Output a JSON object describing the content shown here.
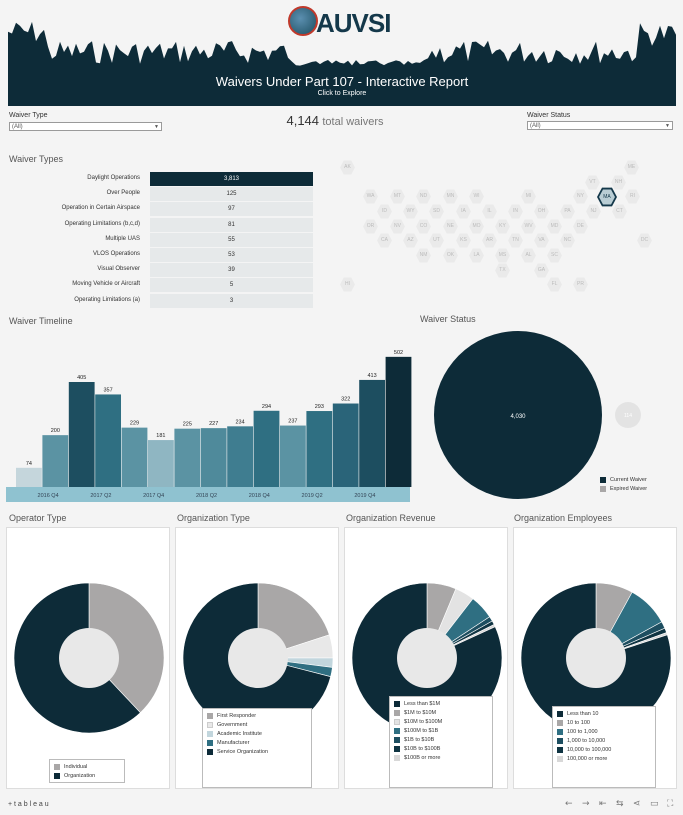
{
  "header": {
    "logo_text": "AUVSI",
    "title": "Waivers Under Part 107 - Interactive Report",
    "subtitle": "Click to Explore"
  },
  "filters": {
    "waiver_type_label": "Waiver Type",
    "waiver_type_value": "(All)",
    "waiver_status_label": "Waiver Status",
    "waiver_status_value": "(All)"
  },
  "total": {
    "number": "4,144",
    "suffix": "total waivers"
  },
  "sections": {
    "waiver_types": "Waiver Types",
    "waiver_timeline": "Waiver Timeline",
    "waiver_status": "Waiver Status",
    "operator_type": "Operator Type",
    "organization_type": "Organization Type",
    "organization_revenue": "Organization Revenue",
    "organization_employees": "Organization Employees"
  },
  "waiver_types": [
    {
      "label": "Daylight Operations",
      "value": "3,813",
      "highlight": true
    },
    {
      "label": "Over People",
      "value": "125"
    },
    {
      "label": "Operation in Certain Airspace",
      "value": "97"
    },
    {
      "label": "Operating Limitations (b,c,d)",
      "value": "81"
    },
    {
      "label": "Multiple UAS",
      "value": "55"
    },
    {
      "label": "VLOS Operations",
      "value": "53"
    },
    {
      "label": "Visual Observer",
      "value": "39"
    },
    {
      "label": "Moving Vehicle or Aircraft",
      "value": "5"
    },
    {
      "label": "Operating Limitations (a)",
      "value": "3"
    }
  ],
  "map_states": [
    "AK",
    "ME",
    "VT",
    "NH",
    "WA",
    "MT",
    "ND",
    "MN",
    "WI",
    "MI",
    "NY",
    "MA",
    "RI",
    "ID",
    "WY",
    "SD",
    "IA",
    "IL",
    "IN",
    "OH",
    "PA",
    "NJ",
    "CT",
    "OR",
    "NV",
    "CO",
    "NE",
    "MO",
    "KY",
    "WV",
    "MD",
    "DE",
    "CA",
    "AZ",
    "UT",
    "KS",
    "AR",
    "TN",
    "VA",
    "NC",
    "DC",
    "NM",
    "OK",
    "LA",
    "MS",
    "AL",
    "SC",
    "TX",
    "GA",
    "HI",
    "FL",
    "PR"
  ],
  "colors": {
    "navy": "#0d2b38",
    "teal_dark": "#1d4e60",
    "teal_mid": "#2f6f82",
    "teal_light": "#5b93a3",
    "teal_pale": "#8fb6c2",
    "axis_band": "#8fc2d0",
    "gray": "#a9a7a7",
    "light_gray": "#d8d8d8"
  },
  "chart_data": [
    {
      "type": "bar",
      "id": "timeline",
      "values": [
        74,
        200,
        405,
        357,
        229,
        181,
        225,
        227,
        234,
        294,
        237,
        293,
        322,
        413,
        502
      ],
      "labels": [
        "74",
        "200",
        "405",
        "357",
        "229",
        "181",
        "225",
        "227",
        "234",
        "294",
        "237",
        "293",
        "322",
        "413",
        "502"
      ],
      "x_ticks": [
        "2016 Q4",
        "2017 Q2",
        "2017 Q4",
        "2018 Q2",
        "2018 Q4",
        "2019 Q2",
        "2019 Q4"
      ]
    },
    {
      "type": "pie",
      "id": "status",
      "slices": [
        {
          "name": "Current Waiver",
          "value": 4030,
          "label": "4,030",
          "color": "#0d2b38"
        },
        {
          "name": "Expired Waiver",
          "value": 114,
          "label": "114",
          "color": "#a9a7a7"
        }
      ]
    },
    {
      "type": "pie",
      "id": "operator",
      "slices": [
        {
          "name": "Individual",
          "value": 38,
          "color": "#a9a7a7"
        },
        {
          "name": "Organization",
          "value": 62,
          "color": "#0d2b38"
        }
      ]
    },
    {
      "type": "pie",
      "id": "orgtype",
      "slices": [
        {
          "name": "First Responder",
          "value": 20,
          "color": "#a9a7a7"
        },
        {
          "name": "Government",
          "value": 5,
          "color": "#e8e8e8"
        },
        {
          "name": "Academic Institute",
          "value": 2,
          "color": "#c2d6dd"
        },
        {
          "name": "Manufacturer",
          "value": 2,
          "color": "#2f6f82"
        },
        {
          "name": "Service Organization",
          "value": 71,
          "color": "#0d2b38"
        }
      ]
    },
    {
      "type": "pie",
      "id": "revenue",
      "slices": [
        {
          "name": "Less than $1M",
          "value": 78,
          "color": "#0d2b38"
        },
        {
          "name": "$1M to $10M",
          "value": 6,
          "color": "#a9a7a7"
        },
        {
          "name": "$10M to $100M",
          "value": 4,
          "color": "#e3e3e3"
        },
        {
          "name": "$100M to $1B",
          "value": 5,
          "color": "#2f6f82"
        },
        {
          "name": "$1B to $10B",
          "value": 1,
          "color": "#1d4e60"
        },
        {
          "name": "$10B to $100B",
          "value": 0.8,
          "color": "#0f3442"
        },
        {
          "name": "$100B or more",
          "value": 0.5,
          "color": "#d8d8d8"
        }
      ],
      "order": [
        1,
        2,
        3,
        4,
        5,
        6,
        0
      ]
    },
    {
      "type": "pie",
      "id": "employees",
      "slices": [
        {
          "name": "Less than 10",
          "value": 80,
          "color": "#0d2b38"
        },
        {
          "name": "10 to 100",
          "value": 8,
          "color": "#a9a7a7"
        },
        {
          "name": "100 to 1,000",
          "value": 9,
          "color": "#2f6f82"
        },
        {
          "name": "1,000 to 10,000",
          "value": 1.5,
          "color": "#1d4e60"
        },
        {
          "name": "10,000 to 100,000",
          "value": 1,
          "color": "#0f3442"
        },
        {
          "name": "100,000 or more",
          "value": 0.5,
          "color": "#d8d8d8"
        }
      ],
      "order": [
        1,
        2,
        3,
        4,
        5,
        0
      ]
    }
  ],
  "footer": {
    "brand": "+ t a b l e a u",
    "icons": [
      "undo-icon",
      "redo-icon",
      "revert-icon",
      "pause-icon",
      "share-icon",
      "comment-icon",
      "fullscreen-icon"
    ]
  }
}
